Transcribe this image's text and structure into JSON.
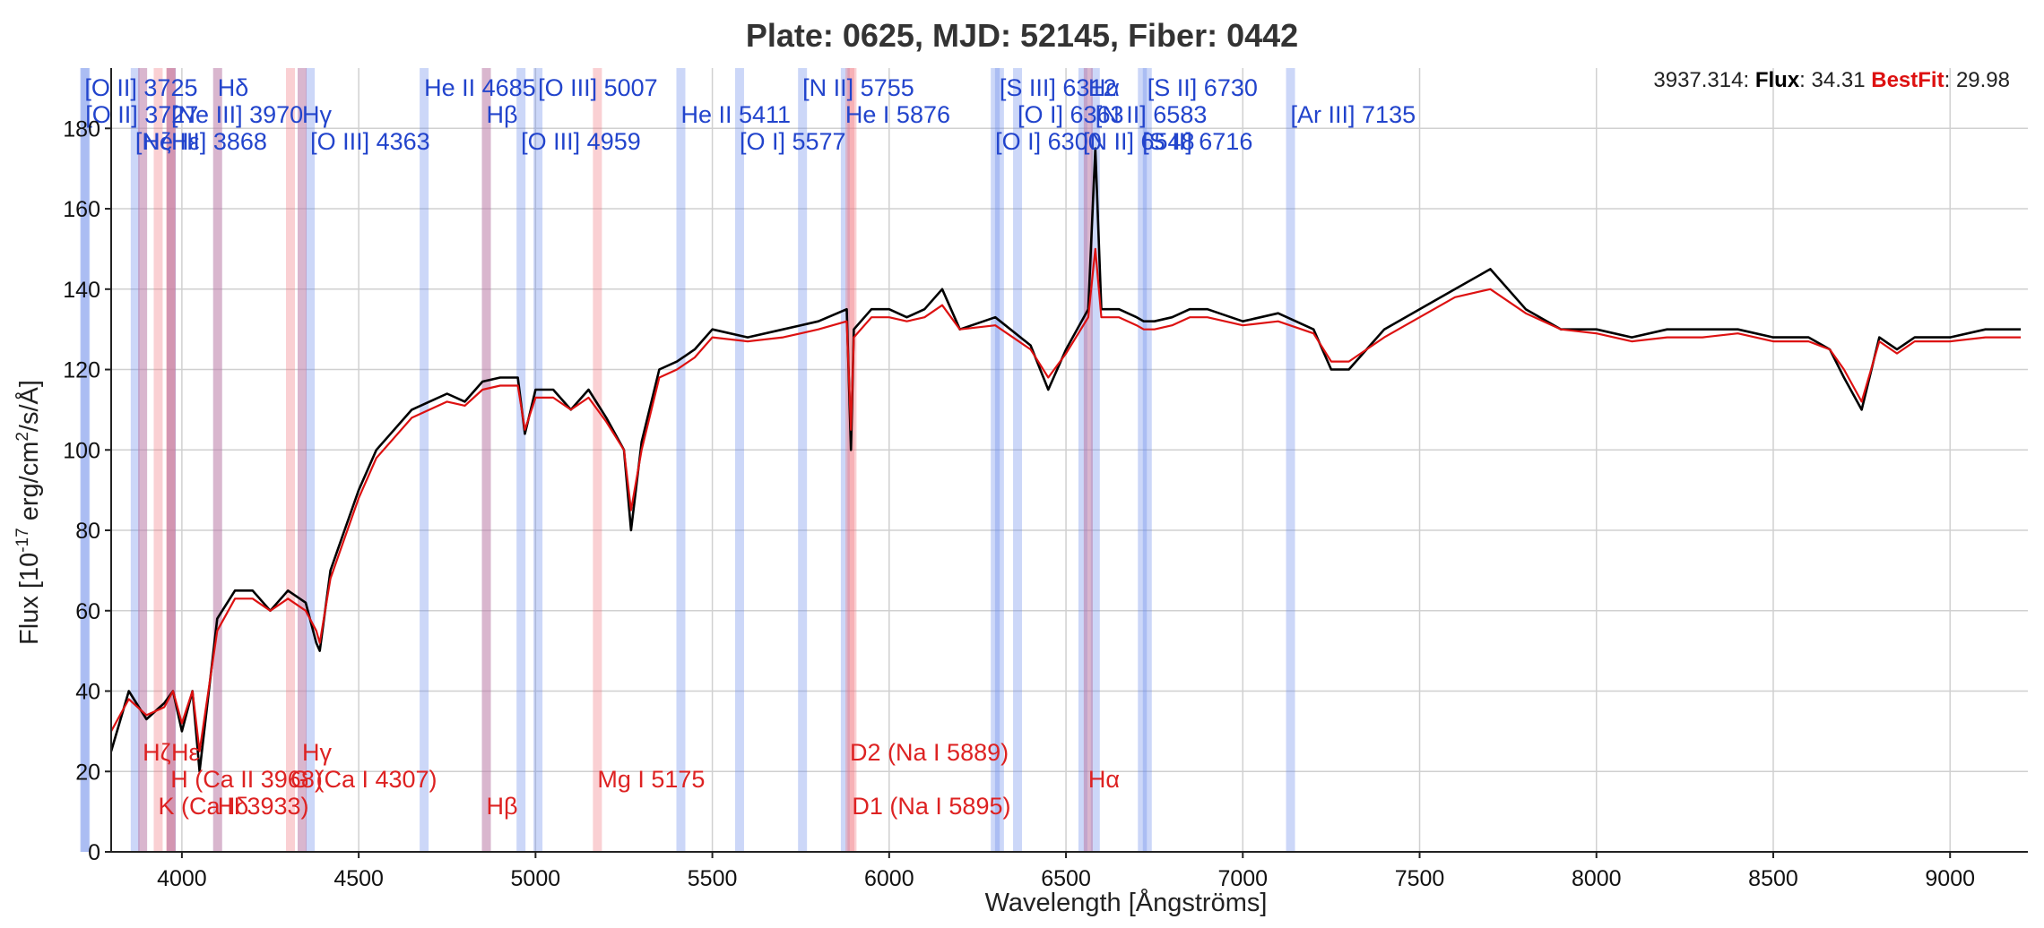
{
  "chart_data": {
    "type": "line",
    "title": "Plate: 0625, MJD: 52145, Fiber: 0442",
    "xlabel": "Wavelength [Ångströms]",
    "ylabel_parts": [
      "Flux [10",
      "-17",
      " erg/cm",
      "2",
      "/s/Å]"
    ],
    "xlim": [
      3800,
      9220
    ],
    "ylim": [
      0,
      195
    ],
    "xticks": [
      4000,
      4500,
      5000,
      5500,
      6000,
      6500,
      7000,
      7500,
      8000,
      8500,
      9000
    ],
    "yticks": [
      0,
      20,
      40,
      60,
      80,
      100,
      120,
      140,
      160,
      180
    ],
    "grid": true,
    "colors": {
      "flux": "#000000",
      "bestfit": "#dd1111",
      "emission": "#2244cc",
      "absorption": "#dd2222",
      "emission_band": "rgba(110,140,235,0.35)",
      "absorption_band": "rgba(240,120,130,0.35)"
    },
    "series": [
      {
        "name": "Flux",
        "color": "#000000",
        "x": [
          3800,
          3850,
          3900,
          3950,
          3975,
          4000,
          4030,
          4050,
          4100,
          4150,
          4200,
          4250,
          4300,
          4350,
          4380,
          4390,
          4420,
          4460,
          4500,
          4550,
          4600,
          4650,
          4700,
          4750,
          4800,
          4850,
          4900,
          4950,
          4970,
          5000,
          5050,
          5100,
          5150,
          5200,
          5250,
          5270,
          5300,
          5350,
          5400,
          5450,
          5500,
          5600,
          5700,
          5800,
          5880,
          5892,
          5900,
          5950,
          6000,
          6050,
          6100,
          6150,
          6200,
          6300,
          6400,
          6450,
          6500,
          6563,
          6583,
          6600,
          6650,
          6700,
          6720,
          6750,
          6800,
          6850,
          6900,
          7000,
          7100,
          7200,
          7250,
          7300,
          7400,
          7500,
          7600,
          7700,
          7800,
          7900,
          8000,
          8100,
          8200,
          8300,
          8400,
          8500,
          8600,
          8660,
          8700,
          8750,
          8800,
          8850,
          8900,
          9000,
          9100,
          9200
        ],
        "y": [
          25,
          40,
          33,
          37,
          40,
          30,
          40,
          20,
          58,
          65,
          65,
          60,
          65,
          62,
          52,
          50,
          70,
          80,
          90,
          100,
          105,
          110,
          112,
          114,
          112,
          117,
          118,
          118,
          104,
          115,
          115,
          110,
          115,
          108,
          100,
          80,
          102,
          120,
          122,
          125,
          130,
          128,
          130,
          132,
          135,
          100,
          130,
          135,
          135,
          133,
          135,
          140,
          130,
          133,
          126,
          115,
          125,
          135,
          175,
          135,
          135,
          133,
          132,
          132,
          133,
          135,
          135,
          132,
          134,
          130,
          120,
          120,
          130,
          135,
          140,
          145,
          135,
          130,
          130,
          128,
          130,
          130,
          130,
          128,
          128,
          125,
          118,
          110,
          128,
          125,
          128,
          128,
          130,
          130
        ]
      },
      {
        "name": "BestFit",
        "color": "#dd1111",
        "x": [
          3800,
          3850,
          3900,
          3950,
          3975,
          4000,
          4030,
          4050,
          4100,
          4150,
          4200,
          4250,
          4300,
          4350,
          4380,
          4390,
          4420,
          4460,
          4500,
          4550,
          4600,
          4650,
          4700,
          4750,
          4800,
          4850,
          4900,
          4950,
          4970,
          5000,
          5050,
          5100,
          5150,
          5200,
          5250,
          5270,
          5300,
          5350,
          5400,
          5450,
          5500,
          5600,
          5700,
          5800,
          5880,
          5892,
          5900,
          5950,
          6000,
          6050,
          6100,
          6150,
          6200,
          6300,
          6400,
          6450,
          6500,
          6563,
          6583,
          6600,
          6650,
          6700,
          6720,
          6750,
          6800,
          6850,
          6900,
          7000,
          7100,
          7200,
          7250,
          7300,
          7400,
          7500,
          7600,
          7700,
          7800,
          7900,
          8000,
          8100,
          8200,
          8300,
          8400,
          8500,
          8600,
          8660,
          8700,
          8750,
          8800,
          8850,
          8900,
          9000,
          9100,
          9200
        ],
        "y": [
          30,
          38,
          34,
          36,
          40,
          32,
          40,
          25,
          55,
          63,
          63,
          60,
          63,
          60,
          55,
          52,
          68,
          78,
          88,
          98,
          103,
          108,
          110,
          112,
          111,
          115,
          116,
          116,
          105,
          113,
          113,
          110,
          113,
          107,
          100,
          85,
          100,
          118,
          120,
          123,
          128,
          127,
          128,
          130,
          132,
          105,
          128,
          133,
          133,
          132,
          133,
          136,
          130,
          131,
          125,
          118,
          124,
          133,
          150,
          133,
          133,
          131,
          130,
          130,
          131,
          133,
          133,
          131,
          132,
          129,
          122,
          122,
          128,
          133,
          138,
          140,
          134,
          130,
          129,
          127,
          128,
          128,
          129,
          127,
          127,
          125,
          120,
          112,
          127,
          124,
          127,
          127,
          128,
          128
        ]
      }
    ],
    "emission_lines": [
      {
        "label": "[O II] 3725",
        "wl": 3725,
        "row": 0
      },
      {
        "label": "[O II] 3727",
        "wl": 3727,
        "row": 1
      },
      {
        "label": "[Ne III] 3868",
        "wl": 3868,
        "row": 2
      },
      {
        "label": "Hζ",
        "wl": 3889,
        "row": 2
      },
      {
        "label": "Hε",
        "wl": 3970,
        "row": 2
      },
      {
        "label": "[Ne III] 3970",
        "wl": 3970,
        "row": 1
      },
      {
        "label": "Hδ",
        "wl": 4101,
        "row": 0
      },
      {
        "label": "Hγ",
        "wl": 4340,
        "row": 1
      },
      {
        "label": "[O III] 4363",
        "wl": 4363,
        "row": 2
      },
      {
        "label": "He II 4685",
        "wl": 4685,
        "row": 0
      },
      {
        "label": "Hβ",
        "wl": 4861,
        "row": 1
      },
      {
        "label": "[O III] 4959",
        "wl": 4959,
        "row": 2
      },
      {
        "label": "[O III] 5007",
        "wl": 5007,
        "row": 0
      },
      {
        "label": "He II 5411",
        "wl": 5411,
        "row": 1
      },
      {
        "label": "[O I] 5577",
        "wl": 5577,
        "row": 2
      },
      {
        "label": "[N II] 5755",
        "wl": 5755,
        "row": 0
      },
      {
        "label": "He I 5876",
        "wl": 5876,
        "row": 1
      },
      {
        "label": "[O I] 6300",
        "wl": 6300,
        "row": 2
      },
      {
        "label": "[S III] 6312",
        "wl": 6312,
        "row": 0
      },
      {
        "label": "[O I] 6363",
        "wl": 6363,
        "row": 1
      },
      {
        "label": "[N II] 6548",
        "wl": 6548,
        "row": 2
      },
      {
        "label": "Hα",
        "wl": 6563,
        "row": 0
      },
      {
        "label": "[N II] 6583",
        "wl": 6583,
        "row": 1
      },
      {
        "label": "[S II] 6716",
        "wl": 6716,
        "row": 2
      },
      {
        "label": "[S II] 6730",
        "wl": 6730,
        "row": 0
      },
      {
        "label": "[Ar III] 7135",
        "wl": 7135,
        "row": 1
      }
    ],
    "absorption_lines": [
      {
        "label": "Hζ",
        "wl": 3889,
        "row": 0
      },
      {
        "label": "Hε",
        "wl": 3970,
        "row": 0
      },
      {
        "label": "H (Ca II 3968)",
        "wl": 3968,
        "row": 1
      },
      {
        "label": "K (Ca II 3933)",
        "wl": 3933,
        "row": 2
      },
      {
        "label": "Hδ",
        "wl": 4101,
        "row": 2
      },
      {
        "label": "Hγ",
        "wl": 4340,
        "row": 0
      },
      {
        "label": "G (Ca I 4307)",
        "wl": 4307,
        "row": 1
      },
      {
        "label": "Hβ",
        "wl": 4861,
        "row": 2
      },
      {
        "label": "Mg I 5175",
        "wl": 5175,
        "row": 1
      },
      {
        "label": "D2 (Na I 5889)",
        "wl": 5889,
        "row": 0
      },
      {
        "label": "D1 (Na I 5895)",
        "wl": 5895,
        "row": 2
      },
      {
        "label": "Hα",
        "wl": 6563,
        "row": 1
      }
    ]
  },
  "readout": {
    "wavelength": "3937.314",
    "flux_label": "Flux",
    "flux_value": "34.31",
    "bestfit_label": "BestFit",
    "bestfit_value": "29.98"
  }
}
